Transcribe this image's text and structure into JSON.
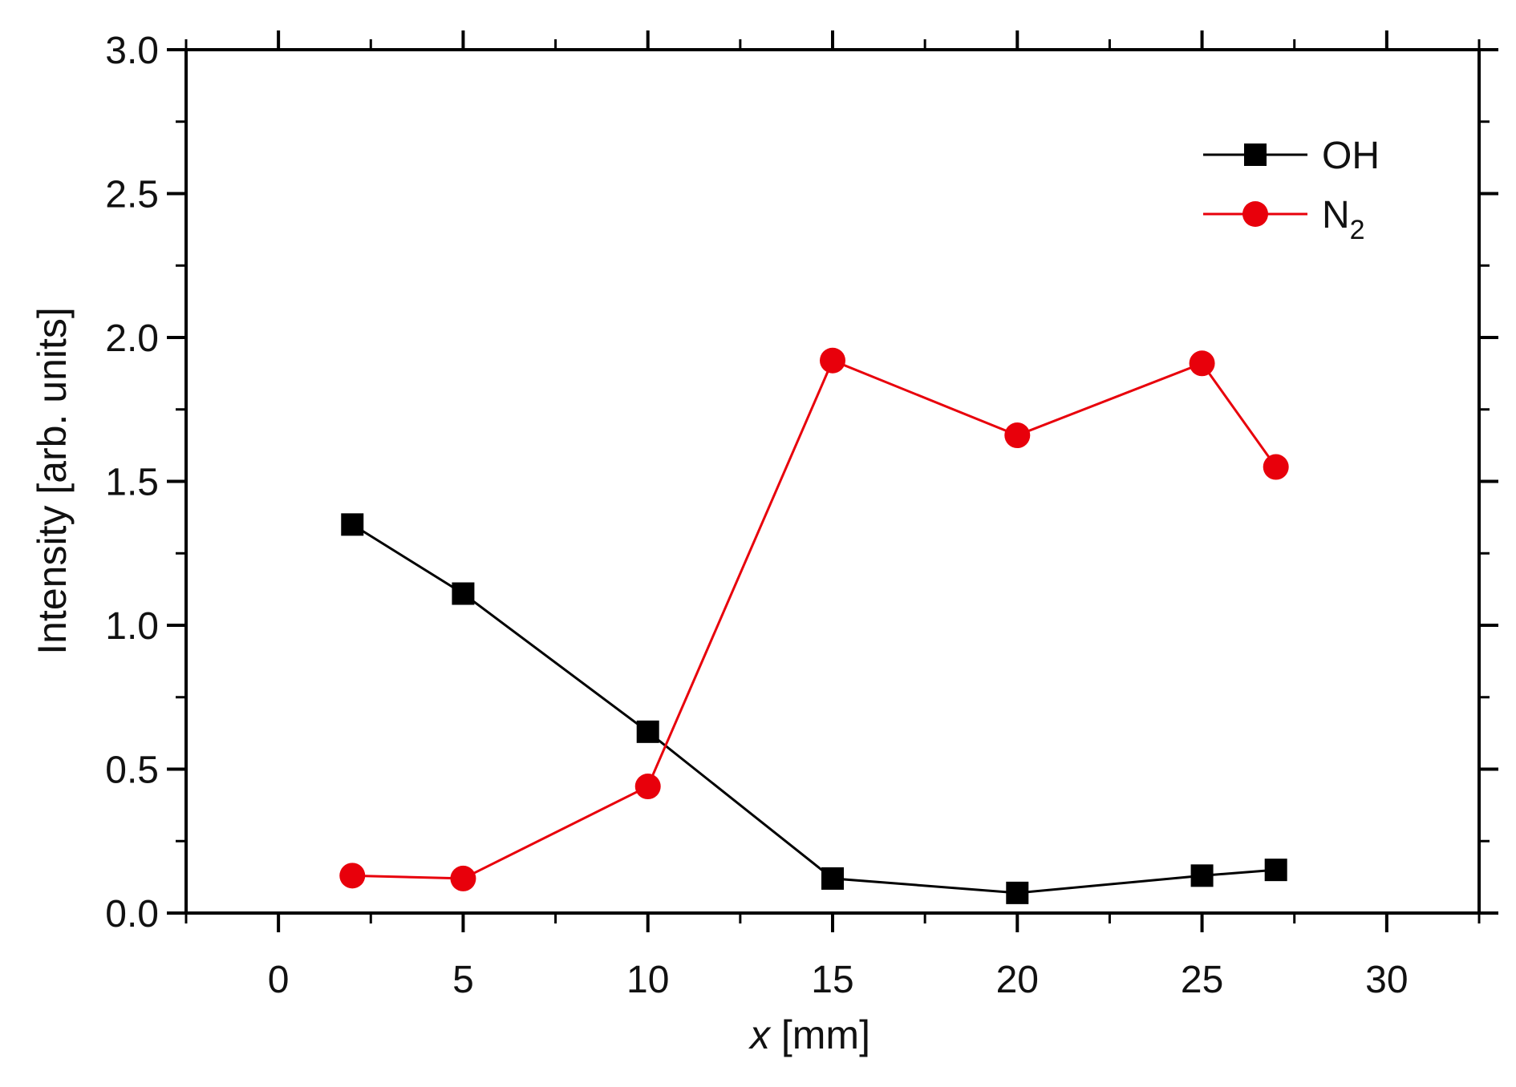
{
  "chart_data": {
    "type": "line",
    "title": "",
    "xlabel_var": "x",
    "xlabel_unit": " [mm]",
    "ylabel": "Intensity [arb. units]",
    "xlim": [
      -2.5,
      32.5
    ],
    "ylim": [
      0,
      3.0
    ],
    "x_ticks": [
      0,
      5,
      10,
      15,
      20,
      25,
      30
    ],
    "y_ticks": [
      0.0,
      0.5,
      1.0,
      1.5,
      2.0,
      2.5,
      3.0
    ],
    "y_tick_labels": [
      "0.0",
      "0.5",
      "1.0",
      "1.5",
      "2.0",
      "2.5",
      "3.0"
    ],
    "grid": false,
    "legend_position": "top-right",
    "series": [
      {
        "name": "OH",
        "color": "#000000",
        "marker": "square",
        "x": [
          2,
          5,
          10,
          15,
          20,
          25,
          27
        ],
        "y": [
          1.35,
          1.11,
          0.63,
          0.12,
          0.07,
          0.13,
          0.15
        ]
      },
      {
        "name": "N",
        "subscript": "2",
        "color": "#e8000b",
        "marker": "circle",
        "x": [
          2,
          5,
          10,
          15,
          20,
          25,
          27
        ],
        "y": [
          0.13,
          0.12,
          0.44,
          1.92,
          1.66,
          1.91,
          1.55
        ]
      }
    ]
  }
}
